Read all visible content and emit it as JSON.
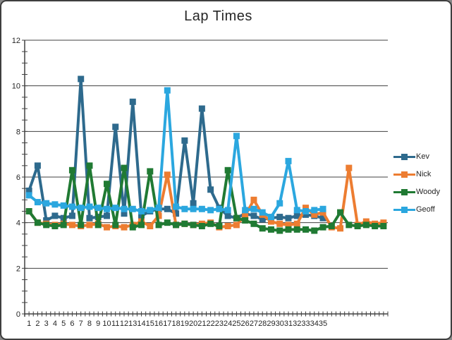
{
  "chart_data": {
    "type": "line",
    "title": "Lap Times",
    "xlabel": "",
    "ylabel": "",
    "ylim": [
      0,
      12
    ],
    "y_ticks": [
      0,
      2,
      4,
      6,
      8,
      10,
      12
    ],
    "y_minor_step": 0.5,
    "x_labels": [
      "1",
      "2",
      "3",
      "4",
      "5",
      "6",
      "7",
      "8",
      "9",
      "10",
      "11",
      "12",
      "13",
      "14",
      "15",
      "16",
      "17",
      "18",
      "19",
      "20",
      "21",
      "22",
      "23",
      "24",
      "25",
      "26",
      "27",
      "28",
      "29",
      "30",
      "31",
      "32",
      "33",
      "34",
      "35"
    ],
    "categories_total": 42,
    "grid": "horizontal-major",
    "legend_position": "right",
    "marker": "square",
    "series": [
      {
        "name": "Kev",
        "color": "#2E6A8D",
        "values": [
          5.4,
          6.5,
          4.1,
          4.3,
          4.2,
          4.3,
          10.3,
          4.2,
          4.25,
          4.3,
          8.2,
          4.4,
          9.3,
          4.3,
          4.5,
          4.6,
          4.6,
          4.4,
          7.6,
          4.85,
          9.0,
          5.45,
          4.65,
          4.3,
          4.2,
          4.4,
          4.3,
          4.15,
          4.2,
          4.25,
          4.2,
          4.3,
          4.35,
          4.3,
          4.2
        ]
      },
      {
        "name": "Nick",
        "color": "#ED7D31",
        "values": [
          4.5,
          4.0,
          3.95,
          3.9,
          3.95,
          3.9,
          3.85,
          3.9,
          3.95,
          3.8,
          3.85,
          3.8,
          3.9,
          4.05,
          3.85,
          4.3,
          6.1,
          3.9,
          3.95,
          3.9,
          3.95,
          4.0,
          3.8,
          3.85,
          3.9,
          4.3,
          5.0,
          4.35,
          4.05,
          3.95,
          3.9,
          3.95,
          4.65,
          4.35,
          4.45,
          3.8,
          3.75,
          6.4,
          3.9,
          4.05,
          3.95,
          4.0
        ]
      },
      {
        "name": "Woody",
        "color": "#207A33",
        "values": [
          4.5,
          4.0,
          3.9,
          3.85,
          3.9,
          6.3,
          3.9,
          6.5,
          3.9,
          5.7,
          3.9,
          6.4,
          3.8,
          3.9,
          6.25,
          3.9,
          4.0,
          3.9,
          3.95,
          3.9,
          3.85,
          3.95,
          3.85,
          6.3,
          4.2,
          4.1,
          3.95,
          3.75,
          3.7,
          3.65,
          3.7,
          3.7,
          3.7,
          3.65,
          3.8,
          3.85,
          4.45,
          3.9,
          3.85,
          3.9,
          3.85,
          3.85
        ]
      },
      {
        "name": "Geoff",
        "color": "#2BA7DF",
        "values": [
          5.2,
          4.9,
          4.85,
          4.8,
          4.75,
          4.7,
          4.65,
          4.7,
          4.65,
          4.6,
          4.65,
          4.6,
          4.6,
          4.5,
          4.55,
          4.65,
          9.8,
          4.7,
          4.6,
          4.6,
          4.6,
          4.55,
          4.6,
          4.55,
          7.8,
          4.55,
          4.6,
          4.45,
          4.25,
          4.85,
          6.7,
          4.55,
          4.5,
          4.55,
          4.6
        ]
      }
    ]
  }
}
